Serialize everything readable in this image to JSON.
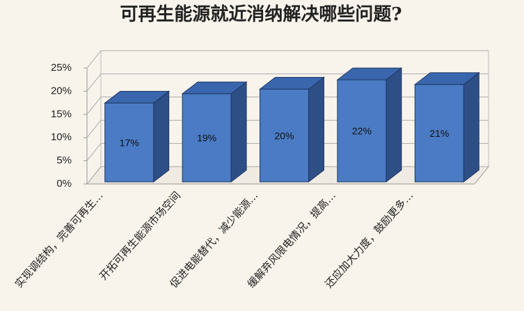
{
  "chart_data": {
    "type": "bar3d",
    "title": "可再生能源就近消纳解决哪些问题?",
    "categories": [
      "实现调结构，完善可再生…",
      "开拓可再生能源市场空间",
      "促进电能替代，减少能源…",
      "缓解弃风限电情况，提高…",
      "还应加大力度，鼓励更多…"
    ],
    "values": [
      17,
      19,
      20,
      22,
      21
    ],
    "value_labels": [
      "17%",
      "19%",
      "20%",
      "22%",
      "21%"
    ],
    "color": "#4a7bc4",
    "ylim": [
      0,
      25
    ],
    "yticks": [
      {
        "value": 0,
        "label": "0%"
      },
      {
        "value": 5,
        "label": "5%"
      },
      {
        "value": 10,
        "label": "10%"
      },
      {
        "value": 15,
        "label": "15%"
      },
      {
        "value": 20,
        "label": "20%"
      },
      {
        "value": 25,
        "label": "25%"
      }
    ],
    "grid": true
  }
}
